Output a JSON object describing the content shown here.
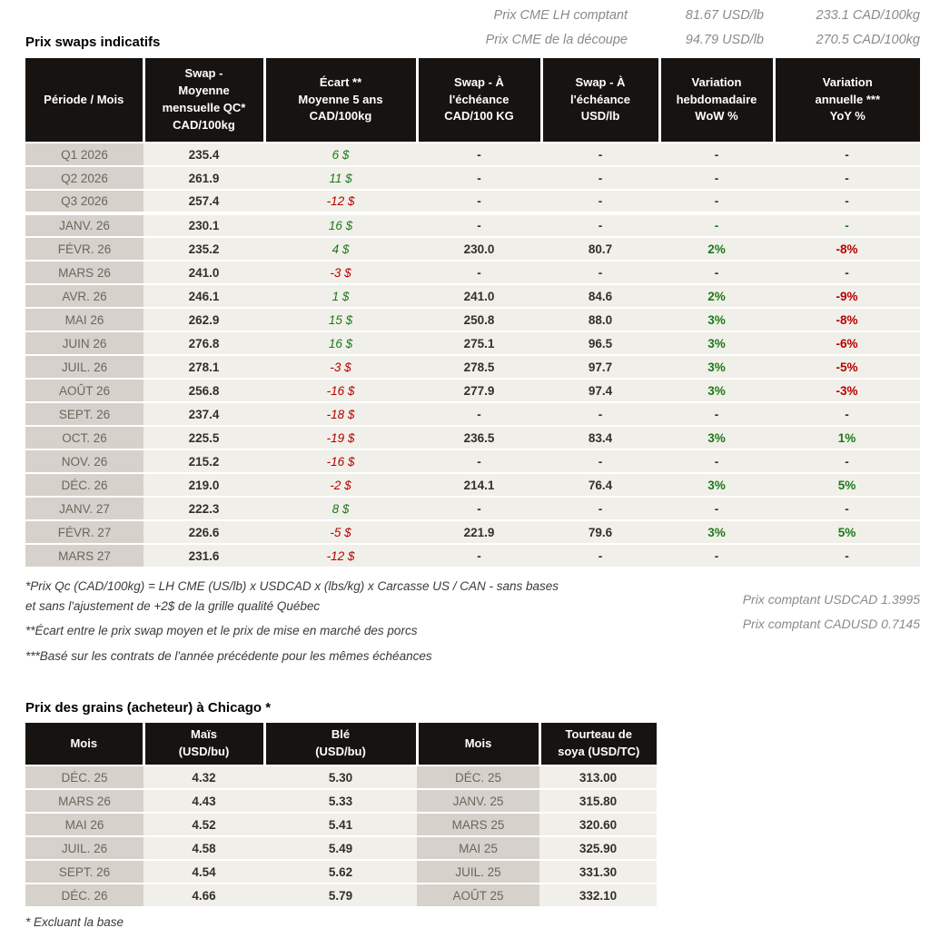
{
  "top_lines": [
    {
      "label": "Prix CME LH comptant",
      "usd": "81.67 USD/lb",
      "cad": "233.1 CAD/100kg"
    },
    {
      "label": "Prix CME de la découpe",
      "usd": "94.79 USD/lb",
      "cad": "270.5 CAD/100kg"
    }
  ],
  "swaps": {
    "title": "Prix swaps indicatifs",
    "headers": [
      "Période / Mois",
      "Swap -\nMoyenne\nmensuelle QC*\nCAD/100kg",
      "Écart **\nMoyenne 5 ans\nCAD/100kg",
      "Swap - À\nl'échéance\nCAD/100 KG",
      "Swap - À\nl'échéance\nUSD/lb",
      "Variation\nhebdomadaire\nWoW %",
      "Variation\nannuelle ***\nYoY %"
    ],
    "rows": [
      {
        "period": "Q1 2026",
        "avg": "235.4",
        "ecart": "6 $",
        "ecart_c": "green",
        "cad": "-",
        "usd": "-",
        "wow": "-",
        "wow_c": "dark",
        "yoy": "-",
        "yoy_c": "dark",
        "sep": false
      },
      {
        "period": "Q2 2026",
        "avg": "261.9",
        "ecart": "11 $",
        "ecart_c": "green",
        "cad": "-",
        "usd": "-",
        "wow": "-",
        "wow_c": "dark",
        "yoy": "-",
        "yoy_c": "dark",
        "sep": false
      },
      {
        "period": "Q3 2026",
        "avg": "257.4",
        "ecart": "-12 $",
        "ecart_c": "red",
        "cad": "-",
        "usd": "-",
        "wow": "-",
        "wow_c": "dark",
        "yoy": "-",
        "yoy_c": "dark",
        "sep": true
      },
      {
        "period": "JANV. 26",
        "avg": "230.1",
        "ecart": "16 $",
        "ecart_c": "green",
        "cad": "-",
        "usd": "-",
        "wow": "-",
        "wow_c": "green",
        "yoy": "-",
        "yoy_c": "green",
        "sep": false
      },
      {
        "period": "FÉVR. 26",
        "avg": "235.2",
        "ecart": "4 $",
        "ecart_c": "green",
        "cad": "230.0",
        "usd": "80.7",
        "wow": "2%",
        "wow_c": "green",
        "yoy": "-8%",
        "yoy_c": "red",
        "sep": false
      },
      {
        "period": "MARS 26",
        "avg": "241.0",
        "ecart": "-3 $",
        "ecart_c": "red",
        "cad": "-",
        "usd": "-",
        "wow": "-",
        "wow_c": "dark",
        "yoy": "-",
        "yoy_c": "dark",
        "sep": false
      },
      {
        "period": "AVR. 26",
        "avg": "246.1",
        "ecart": "1 $",
        "ecart_c": "green",
        "cad": "241.0",
        "usd": "84.6",
        "wow": "2%",
        "wow_c": "green",
        "yoy": "-9%",
        "yoy_c": "red",
        "sep": false
      },
      {
        "period": "MAI 26",
        "avg": "262.9",
        "ecart": "15 $",
        "ecart_c": "green",
        "cad": "250.8",
        "usd": "88.0",
        "wow": "3%",
        "wow_c": "green",
        "yoy": "-8%",
        "yoy_c": "red",
        "sep": false
      },
      {
        "period": "JUIN 26",
        "avg": "276.8",
        "ecart": "16 $",
        "ecart_c": "green",
        "cad": "275.1",
        "usd": "96.5",
        "wow": "3%",
        "wow_c": "green",
        "yoy": "-6%",
        "yoy_c": "red",
        "sep": false
      },
      {
        "period": "JUIL. 26",
        "avg": "278.1",
        "ecart": "-3 $",
        "ecart_c": "red",
        "cad": "278.5",
        "usd": "97.7",
        "wow": "3%",
        "wow_c": "green",
        "yoy": "-5%",
        "yoy_c": "red",
        "sep": false
      },
      {
        "period": "AOÛT 26",
        "avg": "256.8",
        "ecart": "-16 $",
        "ecart_c": "red",
        "cad": "277.9",
        "usd": "97.4",
        "wow": "3%",
        "wow_c": "green",
        "yoy": "-3%",
        "yoy_c": "red",
        "sep": false
      },
      {
        "period": "SEPT. 26",
        "avg": "237.4",
        "ecart": "-18 $",
        "ecart_c": "red",
        "cad": "-",
        "usd": "-",
        "wow": "-",
        "wow_c": "dark",
        "yoy": "-",
        "yoy_c": "dark",
        "sep": false
      },
      {
        "period": "OCT. 26",
        "avg": "225.5",
        "ecart": "-19 $",
        "ecart_c": "red",
        "cad": "236.5",
        "usd": "83.4",
        "wow": "3%",
        "wow_c": "green",
        "yoy": "1%",
        "yoy_c": "green",
        "sep": false
      },
      {
        "period": "NOV. 26",
        "avg": "215.2",
        "ecart": "-16 $",
        "ecart_c": "red",
        "cad": "-",
        "usd": "-",
        "wow": "-",
        "wow_c": "dark",
        "yoy": "-",
        "yoy_c": "dark",
        "sep": false
      },
      {
        "period": "DÉC. 26",
        "avg": "219.0",
        "ecart": "-2 $",
        "ecart_c": "red",
        "cad": "214.1",
        "usd": "76.4",
        "wow": "3%",
        "wow_c": "green",
        "yoy": "5%",
        "yoy_c": "green",
        "sep": false
      },
      {
        "period": "JANV. 27",
        "avg": "222.3",
        "ecart": "8 $",
        "ecart_c": "green",
        "cad": "-",
        "usd": "-",
        "wow": "-",
        "wow_c": "dark",
        "yoy": "-",
        "yoy_c": "dark",
        "sep": false
      },
      {
        "period": "FÉVR. 27",
        "avg": "226.6",
        "ecart": "-5 $",
        "ecart_c": "red",
        "cad": "221.9",
        "usd": "79.6",
        "wow": "3%",
        "wow_c": "green",
        "yoy": "5%",
        "yoy_c": "green",
        "sep": false
      },
      {
        "period": "MARS 27",
        "avg": "231.6",
        "ecart": "-12 $",
        "ecart_c": "red",
        "cad": "-",
        "usd": "-",
        "wow": "-",
        "wow_c": "dark",
        "yoy": "-",
        "yoy_c": "dark",
        "sep": false
      }
    ]
  },
  "notes": {
    "left": [
      "*Prix Qc (CAD/100kg) = LH CME (US/lb) x USDCAD x (lbs/kg) x Carcasse US / CAN - sans bases\net sans l'ajustement de +2$ de la grille qualité Québec",
      "**Écart entre le prix swap moyen et le prix de mise en marché des porcs",
      "***Basé sur les contrats de l'année précédente pour les mêmes échéances"
    ],
    "right": [
      "Prix comptant USDCAD 1.3995",
      "Prix comptant CADUSD 0.7145"
    ]
  },
  "grains": {
    "title": "Prix des grains (acheteur) à Chicago *",
    "headers": [
      "Mois",
      "Maïs\n(USD/bu)",
      "Blé\n(USD/bu)",
      "Mois",
      "Tourteau de\nsoya (USD/TC)"
    ],
    "rows": [
      {
        "m1": "DÉC. 25",
        "mais": "4.32",
        "ble": "5.30",
        "m2": "DÉC. 25",
        "soya": "313.00"
      },
      {
        "m1": "MARS 26",
        "mais": "4.43",
        "ble": "5.33",
        "m2": "JANV. 25",
        "soya": "315.80"
      },
      {
        "m1": "MAI 26",
        "mais": "4.52",
        "ble": "5.41",
        "m2": "MARS 25",
        "soya": "320.60"
      },
      {
        "m1": "JUIL. 26",
        "mais": "4.58",
        "ble": "5.49",
        "m2": "MAI 25",
        "soya": "325.90"
      },
      {
        "m1": "SEPT. 26",
        "mais": "4.54",
        "ble": "5.62",
        "m2": "JUIL. 25",
        "soya": "331.30"
      },
      {
        "m1": "DÉC. 26",
        "mais": "4.66",
        "ble": "5.79",
        "m2": "AOÛT 25",
        "soya": "332.10"
      }
    ],
    "footnote": "* Excluant la base"
  }
}
